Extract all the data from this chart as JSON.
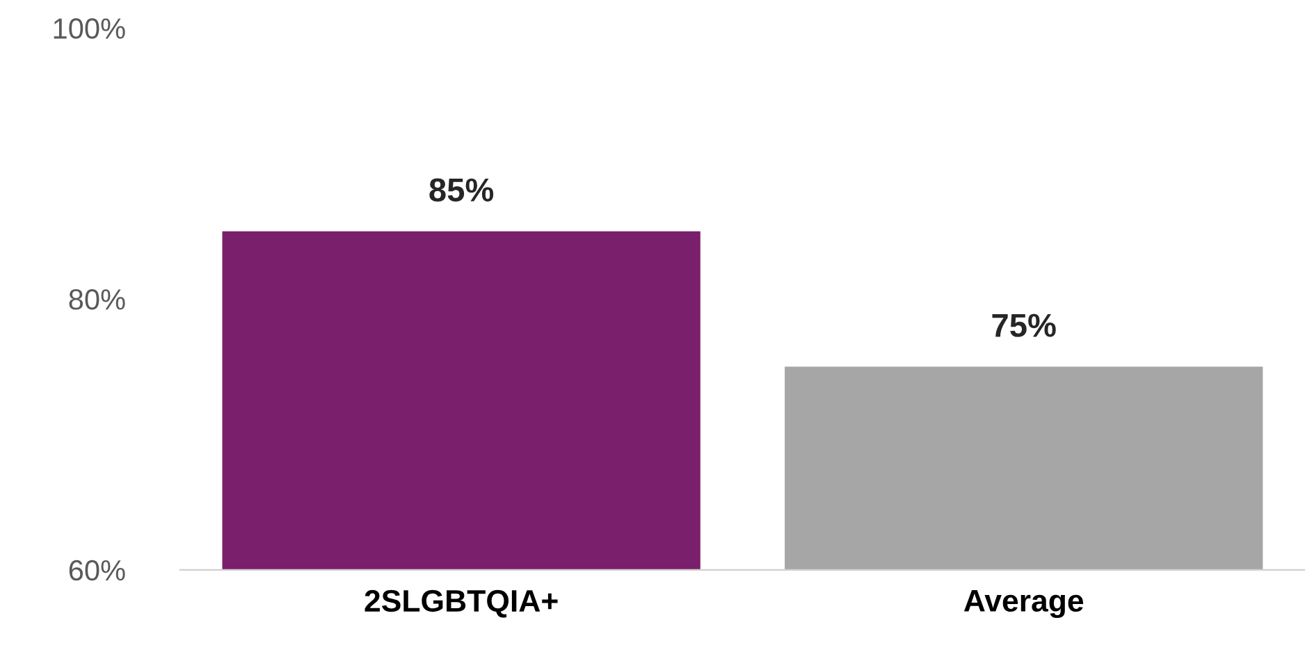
{
  "chart_data": {
    "type": "bar",
    "categories": [
      "2SLGBTQIA+",
      "Average"
    ],
    "values": [
      85,
      75
    ],
    "colors": [
      "#7a1f6b",
      "#a6a6a6"
    ],
    "value_labels": [
      "85%",
      "75%"
    ],
    "ylim": [
      60,
      100
    ],
    "yticks": [
      {
        "value": 60,
        "label": "60%"
      },
      {
        "value": 80,
        "label": "80%"
      },
      {
        "value": 100,
        "label": "100%"
      }
    ],
    "grid": false,
    "legend": false
  }
}
